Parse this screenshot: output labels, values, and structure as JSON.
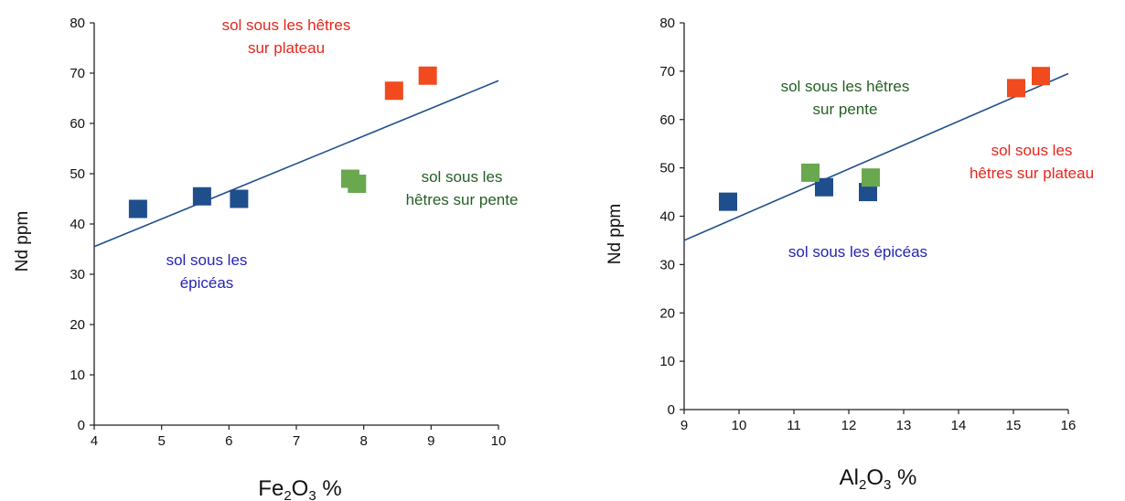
{
  "chart_data": [
    {
      "type": "scatter",
      "xlabel": "Fe2O3 %",
      "xlabel_parts": {
        "main": "Fe",
        "sub1": "2",
        "mid": "O",
        "sub2": "3",
        "unit": " %"
      },
      "ylabel": "Nd ppm",
      "xlim": [
        4,
        10
      ],
      "ylim": [
        0,
        80
      ],
      "x_ticks": [
        4,
        5,
        6,
        7,
        8,
        9,
        10
      ],
      "y_ticks": [
        0,
        10,
        20,
        30,
        40,
        50,
        60,
        70,
        80
      ],
      "grid": false,
      "series": [
        {
          "color": "#1f4e8c",
          "points": [
            {
              "x": 4.65,
              "y": 43
            },
            {
              "x": 5.6,
              "y": 45.5
            },
            {
              "x": 6.15,
              "y": 45
            }
          ]
        },
        {
          "color": "#6aa84f",
          "points": [
            {
              "x": 7.8,
              "y": 49
            },
            {
              "x": 7.9,
              "y": 48
            }
          ]
        },
        {
          "color": "#f04a1e",
          "points": [
            {
              "x": 8.45,
              "y": 66.5
            },
            {
              "x": 8.95,
              "y": 69.5
            }
          ]
        }
      ],
      "trendline": {
        "color": "#1f4e8c",
        "from": {
          "x": 4,
          "y": 35.5
        },
        "to": {
          "x": 10,
          "y": 68.5
        }
      },
      "annotations": [
        {
          "lines": [
            "sol sous les hêtres",
            "sur plateau"
          ],
          "color": "#e8261c"
        },
        {
          "lines": [
            "sol sous les",
            "hêtres sur pente"
          ],
          "color": "#245f24"
        },
        {
          "lines": [
            "sol sous les",
            "épicéas"
          ],
          "color": "#2424b4"
        }
      ]
    },
    {
      "type": "scatter",
      "xlabel": "Al2O3 %",
      "xlabel_parts": {
        "main": "Al",
        "sub1": "2",
        "mid": "O",
        "sub2": "3",
        "unit": " %"
      },
      "ylabel": "Nd ppm",
      "xlim": [
        9,
        16
      ],
      "ylim": [
        0,
        80
      ],
      "x_ticks": [
        9,
        10,
        11,
        12,
        13,
        14,
        15,
        16
      ],
      "y_ticks": [
        0,
        10,
        20,
        30,
        40,
        50,
        60,
        70,
        80
      ],
      "grid": false,
      "series": [
        {
          "color": "#1f4e8c",
          "points": [
            {
              "x": 9.8,
              "y": 43
            },
            {
              "x": 11.55,
              "y": 46
            },
            {
              "x": 12.35,
              "y": 45
            }
          ]
        },
        {
          "color": "#6aa84f",
          "points": [
            {
              "x": 11.3,
              "y": 49
            },
            {
              "x": 12.4,
              "y": 48
            }
          ]
        },
        {
          "color": "#f04a1e",
          "points": [
            {
              "x": 15.05,
              "y": 66.5
            },
            {
              "x": 15.5,
              "y": 69
            }
          ]
        }
      ],
      "trendline": {
        "color": "#1f4e8c",
        "from": {
          "x": 9,
          "y": 35
        },
        "to": {
          "x": 16,
          "y": 69.5
        }
      },
      "annotations": [
        {
          "lines": [
            "sol sous les hêtres",
            "sur pente"
          ],
          "color": "#245f24"
        },
        {
          "lines": [
            "sol sous les",
            "hêtres sur plateau"
          ],
          "color": "#e8261c"
        },
        {
          "lines": [
            "sol sous les épicéas"
          ],
          "color": "#2424b4"
        }
      ]
    }
  ]
}
